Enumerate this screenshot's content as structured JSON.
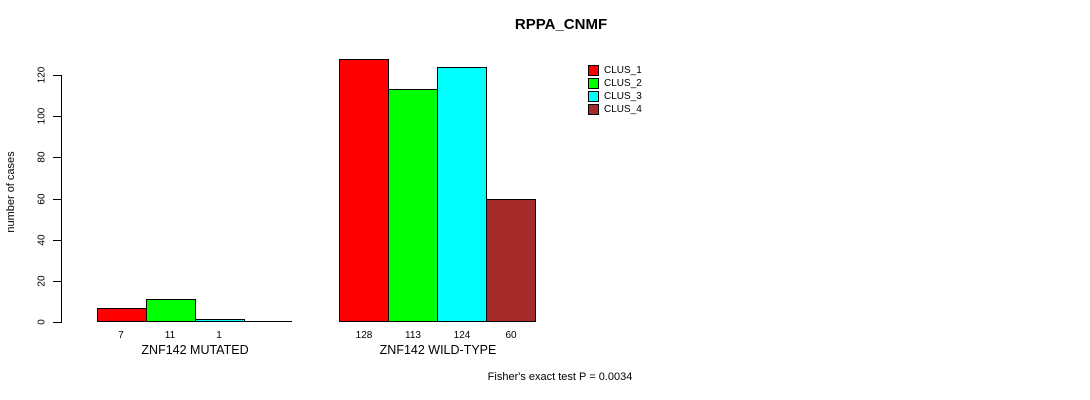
{
  "chart_data": {
    "type": "bar",
    "title": "RPPA_CNMF",
    "xlabel": "",
    "ylabel": "number of cases",
    "ylim": [
      0,
      130
    ],
    "yticks": [
      0,
      20,
      40,
      60,
      80,
      100,
      120
    ],
    "grid": false,
    "bar_border_color": "#000000",
    "series_names": [
      "CLUS_1",
      "CLUS_2",
      "CLUS_3",
      "CLUS_4"
    ],
    "series_colors": [
      "#FF0000",
      "#00FF00",
      "#00FFFF",
      "#A52A2A"
    ],
    "categories": [
      "ZNF142 MUTATED",
      "ZNF142 WILD-TYPE"
    ],
    "groups": [
      {
        "category": "ZNF142 MUTATED",
        "values": [
          7,
          11,
          1,
          0
        ],
        "bar_labels": [
          "7",
          "11",
          "1",
          ""
        ]
      },
      {
        "category": "ZNF142 WILD-TYPE",
        "values": [
          128,
          113,
          124,
          60
        ],
        "bar_labels": [
          "128",
          "113",
          "124",
          "60"
        ]
      }
    ],
    "legend": {
      "position": "right-of-plot-top",
      "entries": [
        {
          "label": "CLUS_1",
          "color": "#FF0000"
        },
        {
          "label": "CLUS_2",
          "color": "#00FF00"
        },
        {
          "label": "CLUS_3",
          "color": "#00FFFF"
        },
        {
          "label": "CLUS_4",
          "color": "#A52A2A"
        }
      ]
    },
    "annotation": "Fisher's exact test P = 0.0034"
  }
}
